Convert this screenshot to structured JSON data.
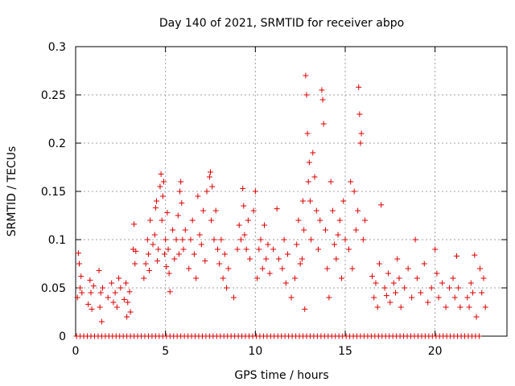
{
  "chart_data": {
    "type": "scatter",
    "title": "Day 140 of 2021, SRMTID for receiver abpo",
    "xlabel": "GPS time / hours",
    "ylabel": "SRMTID / TECUs",
    "xlim": [
      0,
      24
    ],
    "ylim": [
      0,
      0.3
    ],
    "grid": true,
    "marker": "+",
    "color": "#dd0000",
    "x_ticks": [
      0,
      5,
      10,
      15,
      20
    ],
    "x_tick_labels": [
      "0",
      "5",
      "10",
      "15",
      "20"
    ],
    "y_ticks": [
      0,
      0.05,
      0.1,
      0.15,
      0.2,
      0.25,
      0.3
    ],
    "y_tick_labels": [
      "0",
      "0.05",
      "0.1",
      "0.15",
      "0.2",
      "0.25",
      "0.3"
    ],
    "series": [
      {
        "name": "SRMTID",
        "points": [
          [
            0.1,
            0.04
          ],
          [
            0.15,
            0.086
          ],
          [
            0.2,
            0.075
          ],
          [
            0.25,
            0.05
          ],
          [
            0.3,
            0.062
          ],
          [
            0.35,
            0.045
          ],
          [
            0.7,
            0.033
          ],
          [
            0.8,
            0.058
          ],
          [
            0.85,
            0.045
          ],
          [
            0.9,
            0.028
          ],
          [
            1.0,
            0.052
          ],
          [
            1.3,
            0.068
          ],
          [
            1.35,
            0.03
          ],
          [
            1.4,
            0.045
          ],
          [
            1.45,
            0.015
          ],
          [
            1.5,
            0.05
          ],
          [
            1.8,
            0.04
          ],
          [
            2.0,
            0.055
          ],
          [
            2.1,
            0.035
          ],
          [
            2.2,
            0.045
          ],
          [
            2.3,
            0.03
          ],
          [
            2.4,
            0.06
          ],
          [
            2.5,
            0.05
          ],
          [
            2.7,
            0.038
          ],
          [
            2.8,
            0.055
          ],
          [
            2.85,
            0.02
          ],
          [
            2.9,
            0.035
          ],
          [
            3.0,
            0.046
          ],
          [
            3.05,
            0.025
          ],
          [
            3.2,
            0.09
          ],
          [
            3.25,
            0.116
          ],
          [
            3.3,
            0.075
          ],
          [
            3.35,
            0.088
          ],
          [
            3.8,
            0.06
          ],
          [
            3.9,
            0.075
          ],
          [
            4.0,
            0.1
          ],
          [
            4.05,
            0.085
          ],
          [
            4.1,
            0.068
          ],
          [
            4.15,
            0.12
          ],
          [
            4.3,
            0.095
          ],
          [
            4.4,
            0.105
          ],
          [
            4.45,
            0.133
          ],
          [
            4.5,
            0.14
          ],
          [
            4.55,
            0.078
          ],
          [
            4.6,
            0.09
          ],
          [
            4.7,
            0.155
          ],
          [
            4.75,
            0.168
          ],
          [
            4.8,
            0.12
          ],
          [
            4.85,
            0.145
          ],
          [
            4.9,
            0.16
          ],
          [
            4.95,
            0.085
          ],
          [
            5.0,
            0.1
          ],
          [
            5.05,
            0.072
          ],
          [
            5.1,
            0.128
          ],
          [
            5.15,
            0.09
          ],
          [
            5.2,
            0.065
          ],
          [
            5.25,
            0.046
          ],
          [
            5.4,
            0.11
          ],
          [
            5.5,
            0.08
          ],
          [
            5.6,
            0.1
          ],
          [
            5.7,
            0.125
          ],
          [
            5.75,
            0.085
          ],
          [
            5.8,
            0.15
          ],
          [
            5.85,
            0.16
          ],
          [
            5.9,
            0.138
          ],
          [
            5.95,
            0.1
          ],
          [
            6.0,
            0.09
          ],
          [
            6.1,
            0.11
          ],
          [
            6.3,
            0.07
          ],
          [
            6.4,
            0.1
          ],
          [
            6.5,
            0.12
          ],
          [
            6.6,
            0.085
          ],
          [
            6.7,
            0.06
          ],
          [
            6.8,
            0.145
          ],
          [
            6.9,
            0.105
          ],
          [
            7.0,
            0.095
          ],
          [
            7.1,
            0.13
          ],
          [
            7.2,
            0.078
          ],
          [
            7.3,
            0.15
          ],
          [
            7.45,
            0.165
          ],
          [
            7.5,
            0.17
          ],
          [
            7.55,
            0.12
          ],
          [
            7.6,
            0.155
          ],
          [
            7.7,
            0.1
          ],
          [
            7.8,
            0.13
          ],
          [
            7.9,
            0.09
          ],
          [
            8.0,
            0.075
          ],
          [
            8.1,
            0.1
          ],
          [
            8.2,
            0.06
          ],
          [
            8.3,
            0.085
          ],
          [
            8.4,
            0.05
          ],
          [
            8.5,
            0.07
          ],
          [
            8.8,
            0.04
          ],
          [
            9.0,
            0.09
          ],
          [
            9.1,
            0.115
          ],
          [
            9.2,
            0.1
          ],
          [
            9.3,
            0.153
          ],
          [
            9.35,
            0.135
          ],
          [
            9.4,
            0.105
          ],
          [
            9.5,
            0.09
          ],
          [
            9.6,
            0.12
          ],
          [
            9.7,
            0.08
          ],
          [
            9.9,
            0.13
          ],
          [
            10.0,
            0.15
          ],
          [
            10.1,
            0.06
          ],
          [
            10.2,
            0.09
          ],
          [
            10.3,
            0.1
          ],
          [
            10.4,
            0.07
          ],
          [
            10.5,
            0.115
          ],
          [
            10.6,
            0.08
          ],
          [
            10.7,
            0.095
          ],
          [
            10.8,
            0.065
          ],
          [
            11.0,
            0.09
          ],
          [
            11.2,
            0.132
          ],
          [
            11.3,
            0.08
          ],
          [
            11.5,
            0.07
          ],
          [
            11.6,
            0.1
          ],
          [
            11.7,
            0.055
          ],
          [
            11.8,
            0.085
          ],
          [
            12.0,
            0.04
          ],
          [
            12.2,
            0.06
          ],
          [
            12.3,
            0.095
          ],
          [
            12.4,
            0.12
          ],
          [
            12.5,
            0.075
          ],
          [
            12.6,
            0.08
          ],
          [
            12.65,
            0.14
          ],
          [
            12.7,
            0.11
          ],
          [
            12.75,
            0.028
          ],
          [
            12.8,
            0.27
          ],
          [
            12.85,
            0.25
          ],
          [
            12.9,
            0.21
          ],
          [
            12.95,
            0.16
          ],
          [
            13.0,
            0.18
          ],
          [
            13.05,
            0.14
          ],
          [
            13.1,
            0.1
          ],
          [
            13.2,
            0.19
          ],
          [
            13.3,
            0.165
          ],
          [
            13.4,
            0.13
          ],
          [
            13.5,
            0.09
          ],
          [
            13.6,
            0.12
          ],
          [
            13.7,
            0.255
          ],
          [
            13.75,
            0.245
          ],
          [
            13.8,
            0.22
          ],
          [
            13.9,
            0.11
          ],
          [
            14.0,
            0.07
          ],
          [
            14.1,
            0.04
          ],
          [
            14.2,
            0.16
          ],
          [
            14.3,
            0.13
          ],
          [
            14.4,
            0.095
          ],
          [
            14.5,
            0.08
          ],
          [
            14.6,
            0.105
          ],
          [
            14.7,
            0.12
          ],
          [
            14.8,
            0.06
          ],
          [
            14.9,
            0.14
          ],
          [
            15.0,
            0.1
          ],
          [
            15.2,
            0.09
          ],
          [
            15.3,
            0.16
          ],
          [
            15.4,
            0.07
          ],
          [
            15.5,
            0.15
          ],
          [
            15.6,
            0.11
          ],
          [
            15.7,
            0.13
          ],
          [
            15.75,
            0.258
          ],
          [
            15.8,
            0.23
          ],
          [
            15.85,
            0.2
          ],
          [
            15.9,
            0.21
          ],
          [
            16.0,
            0.1
          ],
          [
            16.1,
            0.12
          ],
          [
            16.5,
            0.062
          ],
          [
            16.6,
            0.04
          ],
          [
            16.7,
            0.055
          ],
          [
            16.8,
            0.03
          ],
          [
            16.9,
            0.075
          ],
          [
            17.0,
            0.136
          ],
          [
            17.2,
            0.05
          ],
          [
            17.3,
            0.042
          ],
          [
            17.4,
            0.065
          ],
          [
            17.5,
            0.035
          ],
          [
            17.7,
            0.055
          ],
          [
            17.8,
            0.045
          ],
          [
            17.9,
            0.08
          ],
          [
            18.0,
            0.06
          ],
          [
            18.1,
            0.03
          ],
          [
            18.3,
            0.05
          ],
          [
            18.5,
            0.07
          ],
          [
            18.7,
            0.04
          ],
          [
            18.9,
            0.1
          ],
          [
            19.0,
            0.06
          ],
          [
            19.2,
            0.045
          ],
          [
            19.4,
            0.075
          ],
          [
            19.6,
            0.035
          ],
          [
            19.8,
            0.05
          ],
          [
            20.0,
            0.09
          ],
          [
            20.1,
            0.065
          ],
          [
            20.2,
            0.04
          ],
          [
            20.4,
            0.055
          ],
          [
            20.6,
            0.03
          ],
          [
            20.8,
            0.05
          ],
          [
            21.0,
            0.06
          ],
          [
            21.1,
            0.04
          ],
          [
            21.2,
            0.083
          ],
          [
            21.3,
            0.05
          ],
          [
            21.4,
            0.03
          ],
          [
            21.8,
            0.04
          ],
          [
            21.9,
            0.03
          ],
          [
            22.0,
            0.055
          ],
          [
            22.1,
            0.045
          ],
          [
            22.2,
            0.084
          ],
          [
            22.3,
            0.02
          ],
          [
            22.5,
            0.07
          ],
          [
            22.6,
            0.045
          ],
          [
            22.7,
            0.06
          ],
          [
            22.8,
            0.03
          ]
        ],
        "zero_x": [
          0.05,
          0.25,
          0.45,
          0.65,
          0.85,
          1.05,
          1.25,
          1.45,
          1.65,
          1.85,
          2.05,
          2.25,
          2.45,
          2.65,
          2.85,
          3.05,
          3.25,
          3.45,
          3.65,
          3.85,
          4.05,
          4.25,
          4.45,
          4.65,
          4.85,
          5.05,
          5.25,
          5.45,
          5.65,
          5.85,
          6.05,
          6.25,
          6.45,
          6.65,
          6.85,
          7.05,
          7.25,
          7.45,
          7.65,
          7.85,
          8.05,
          8.25,
          8.45,
          8.65,
          8.85,
          9.05,
          9.25,
          9.45,
          9.65,
          9.85,
          10.05,
          10.25,
          10.45,
          10.65,
          10.85,
          11.05,
          11.25,
          11.45,
          11.65,
          11.85,
          12.05,
          12.25,
          12.45,
          12.65,
          12.85,
          13.05,
          13.25,
          13.45,
          13.65,
          13.85,
          14.05,
          14.25,
          14.45,
          14.65,
          14.85,
          15.05,
          15.25,
          15.45,
          15.65,
          15.85,
          16.05,
          16.25,
          16.45,
          16.65,
          16.85,
          17.05,
          17.25,
          17.45,
          17.65,
          17.85,
          18.05,
          18.25,
          18.45,
          18.65,
          18.85,
          19.05,
          19.25,
          19.45,
          19.65,
          19.85,
          20.05,
          20.25,
          20.45,
          20.65,
          20.85,
          21.05,
          21.25,
          21.45,
          21.65,
          21.85,
          22.05,
          22.25,
          22.45
        ]
      }
    ]
  }
}
